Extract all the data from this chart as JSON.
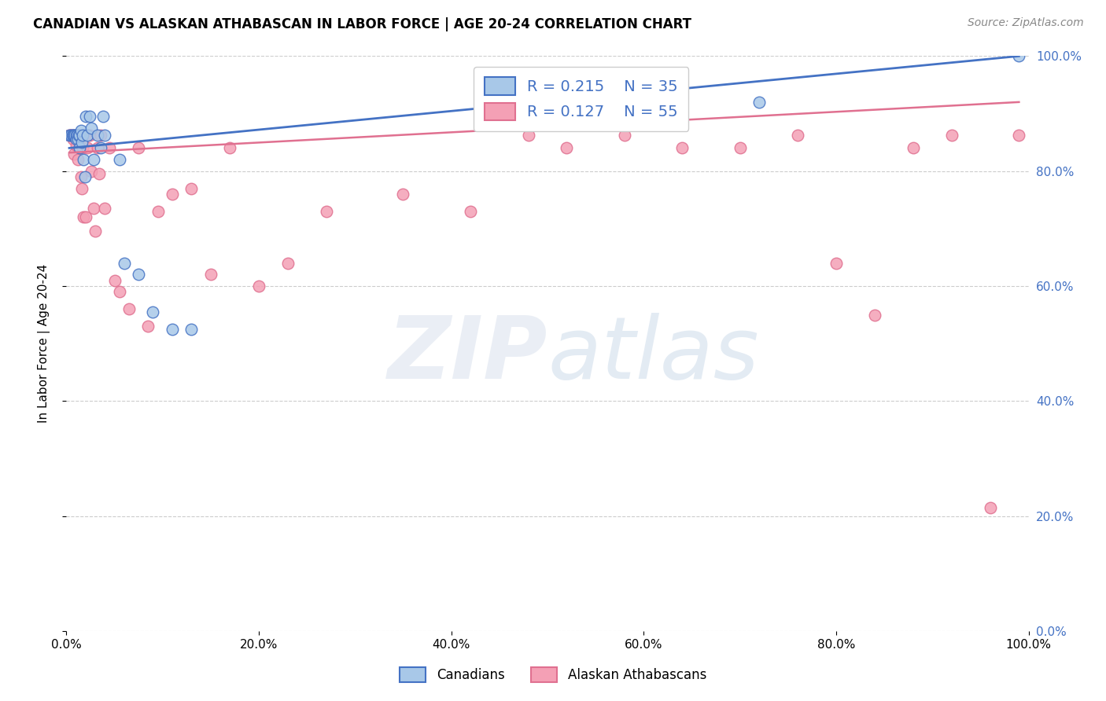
{
  "title": "CANADIAN VS ALASKAN ATHABASCAN IN LABOR FORCE | AGE 20-24 CORRELATION CHART",
  "source": "Source: ZipAtlas.com",
  "ylabel": "In Labor Force | Age 20-24",
  "legend_canadian": "Canadians",
  "legend_alaskan": "Alaskan Athabascans",
  "r_canadian": 0.215,
  "n_canadian": 35,
  "r_alaskan": 0.127,
  "n_alaskan": 55,
  "color_canadian": "#a8c8e8",
  "color_alaskan": "#f4a0b5",
  "color_line_canadian": "#4472c4",
  "color_line_alaskan": "#e07090",
  "xlim": [
    0,
    1
  ],
  "ylim": [
    0,
    1
  ],
  "xticks": [
    0.0,
    0.2,
    0.4,
    0.6,
    0.8,
    1.0
  ],
  "yticks": [
    0.0,
    0.2,
    0.4,
    0.6,
    0.8,
    1.0
  ],
  "canadian_x": [
    0.003,
    0.005,
    0.006,
    0.007,
    0.008,
    0.009,
    0.01,
    0.01,
    0.011,
    0.012,
    0.013,
    0.014,
    0.014,
    0.015,
    0.016,
    0.017,
    0.018,
    0.019,
    0.02,
    0.022,
    0.024,
    0.026,
    0.028,
    0.032,
    0.036,
    0.038,
    0.04,
    0.055,
    0.06,
    0.075,
    0.09,
    0.11,
    0.13,
    0.72,
    0.99
  ],
  "canadian_y": [
    0.862,
    0.862,
    0.862,
    0.862,
    0.862,
    0.862,
    0.862,
    0.855,
    0.862,
    0.855,
    0.862,
    0.862,
    0.84,
    0.87,
    0.85,
    0.862,
    0.82,
    0.79,
    0.895,
    0.862,
    0.895,
    0.875,
    0.82,
    0.862,
    0.84,
    0.895,
    0.862,
    0.82,
    0.64,
    0.62,
    0.555,
    0.525,
    0.525,
    0.92,
    1.0
  ],
  "alaskan_x": [
    0.003,
    0.004,
    0.005,
    0.006,
    0.007,
    0.008,
    0.009,
    0.01,
    0.011,
    0.012,
    0.013,
    0.014,
    0.015,
    0.016,
    0.017,
    0.018,
    0.019,
    0.02,
    0.022,
    0.024,
    0.026,
    0.028,
    0.03,
    0.032,
    0.034,
    0.036,
    0.04,
    0.045,
    0.05,
    0.055,
    0.065,
    0.075,
    0.085,
    0.095,
    0.11,
    0.13,
    0.15,
    0.17,
    0.2,
    0.23,
    0.27,
    0.35,
    0.42,
    0.48,
    0.52,
    0.58,
    0.64,
    0.7,
    0.76,
    0.8,
    0.84,
    0.88,
    0.92,
    0.96,
    0.99
  ],
  "alaskan_y": [
    0.862,
    0.862,
    0.862,
    0.862,
    0.855,
    0.83,
    0.862,
    0.845,
    0.862,
    0.82,
    0.862,
    0.84,
    0.79,
    0.77,
    0.84,
    0.72,
    0.862,
    0.72,
    0.84,
    0.862,
    0.8,
    0.735,
    0.695,
    0.84,
    0.795,
    0.862,
    0.735,
    0.84,
    0.61,
    0.59,
    0.56,
    0.84,
    0.53,
    0.73,
    0.76,
    0.77,
    0.62,
    0.84,
    0.6,
    0.64,
    0.73,
    0.76,
    0.73,
    0.862,
    0.84,
    0.862,
    0.84,
    0.84,
    0.862,
    0.64,
    0.55,
    0.84,
    0.862,
    0.215,
    0.862
  ],
  "trend_canadian_x0": 0.003,
  "trend_canadian_x1": 0.99,
  "trend_canadian_y0": 0.84,
  "trend_canadian_y1": 1.0,
  "trend_alaskan_x0": 0.003,
  "trend_alaskan_x1": 0.99,
  "trend_alaskan_y0": 0.832,
  "trend_alaskan_y1": 0.92
}
